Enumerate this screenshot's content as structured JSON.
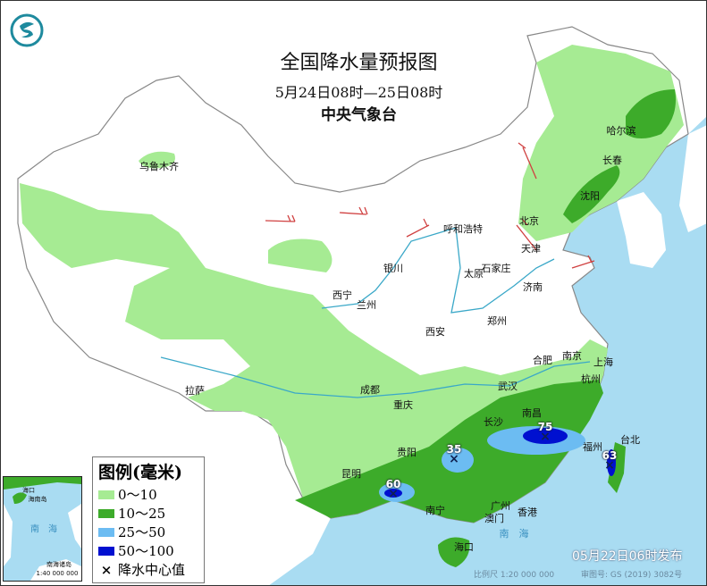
{
  "header": {
    "title": "全国降水量预报图",
    "period": "5月24日08时—25日08时",
    "agency": "中央气象台"
  },
  "logo": {
    "icon": "cma-dragon-logo-icon",
    "color": "#1e8a9e"
  },
  "colors": {
    "sea": "#a9dcf2",
    "land": "#ffffff",
    "rain_0_10": "#a6eb93",
    "rain_10_25": "#3dab2a",
    "rain_25_50": "#6cbcf2",
    "rain_50_100": "#0010d0",
    "river": "#3aa8c8",
    "wind_barb": "#d04040"
  },
  "cities": [
    "乌鲁木齐",
    "拉萨",
    "西宁",
    "兰州",
    "银川",
    "呼和浩特",
    "北京",
    "天津",
    "石家庄",
    "太原",
    "济南",
    "郑州",
    "西安",
    "合肥",
    "南京",
    "上海",
    "成都",
    "重庆",
    "武汉",
    "杭州",
    "长沙",
    "南昌",
    "贵阳",
    "昆明",
    "福州",
    "台北",
    "南宁",
    "广州",
    "香港",
    "澳门",
    "海口",
    "哈尔滨",
    "长春",
    "沈阳"
  ],
  "rain_centers": [
    {
      "value": "75"
    },
    {
      "value": "35"
    },
    {
      "value": "60"
    },
    {
      "value": "63"
    }
  ],
  "legend": {
    "title": "图例(毫米)",
    "items": [
      {
        "label": "0～10",
        "color": "#a6eb93"
      },
      {
        "label": "10～25",
        "color": "#3dab2a"
      },
      {
        "label": "25～50",
        "color": "#6cbcf2"
      },
      {
        "label": "50～100",
        "color": "#0010d0"
      }
    ],
    "center_label": "降水中心值",
    "center_symbol": "×"
  },
  "inset": {
    "sea_label": "南　海",
    "islands_label": "南海诸岛",
    "scale": "1:40 000 000",
    "haikou": "海口",
    "hainan": "海南岛"
  },
  "footer": {
    "issued": "05月22日06时发布",
    "scale": "比例尺 1:20 000 000",
    "review_no": "审图号: GS (2019) 3082号"
  },
  "sea_label": "南　海"
}
